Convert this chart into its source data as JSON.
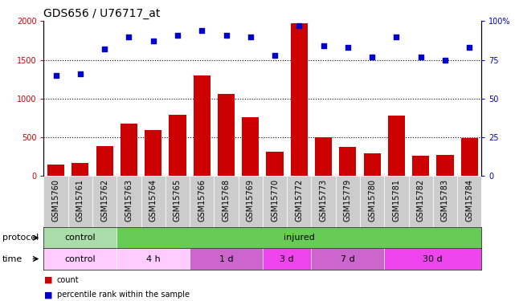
{
  "title": "GDS656 / U76717_at",
  "samples": [
    "GSM15760",
    "GSM15761",
    "GSM15762",
    "GSM15763",
    "GSM15764",
    "GSM15765",
    "GSM15766",
    "GSM15768",
    "GSM15769",
    "GSM15770",
    "GSM15772",
    "GSM15773",
    "GSM15779",
    "GSM15780",
    "GSM15781",
    "GSM15782",
    "GSM15783",
    "GSM15784"
  ],
  "counts": [
    150,
    165,
    390,
    680,
    595,
    790,
    1300,
    1060,
    760,
    315,
    1970,
    500,
    380,
    295,
    785,
    265,
    270,
    490
  ],
  "percentiles": [
    65,
    66,
    82,
    90,
    87,
    91,
    94,
    91,
    90,
    78,
    97,
    84,
    83,
    77,
    90,
    77,
    75,
    83
  ],
  "count_color": "#cc0000",
  "percentile_color": "#0000cc",
  "bar_ylim": [
    0,
    2000
  ],
  "pct_ylim": [
    0,
    100
  ],
  "bar_yticks": [
    0,
    500,
    1000,
    1500,
    2000
  ],
  "pct_yticks": [
    0,
    25,
    50,
    75,
    100
  ],
  "pct_yticklabels": [
    "0",
    "25",
    "50",
    "75",
    "100%"
  ],
  "protocol_groups": [
    {
      "label": "control",
      "start": 0,
      "end": 3,
      "color": "#aaddaa"
    },
    {
      "label": "injured",
      "start": 3,
      "end": 18,
      "color": "#66cc55"
    }
  ],
  "time_groups": [
    {
      "label": "control",
      "start": 0,
      "end": 3,
      "color": "#ffccff"
    },
    {
      "label": "4 h",
      "start": 3,
      "end": 6,
      "color": "#ffccff"
    },
    {
      "label": "1 d",
      "start": 6,
      "end": 9,
      "color": "#cc66cc"
    },
    {
      "label": "3 d",
      "start": 9,
      "end": 11,
      "color": "#ee44ee"
    },
    {
      "label": "7 d",
      "start": 11,
      "end": 14,
      "color": "#cc66cc"
    },
    {
      "label": "30 d",
      "start": 14,
      "end": 18,
      "color": "#ee44ee"
    }
  ],
  "legend_count_label": "count",
  "legend_pct_label": "percentile rank within the sample",
  "title_fontsize": 10,
  "tick_fontsize": 7,
  "label_fontsize": 8,
  "row_label_fontsize": 8,
  "xtick_bg_color": "#cccccc"
}
